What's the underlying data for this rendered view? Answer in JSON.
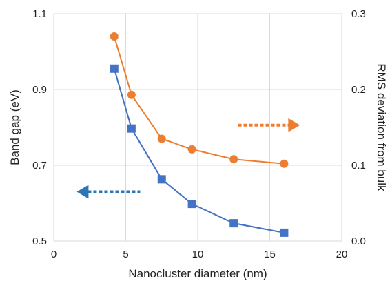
{
  "chart_data": {
    "type": "line",
    "xlabel": "Nanocluster diameter (nm)",
    "ylabel": "Band gap (eV)",
    "y2label": "RMS deviation from bulk",
    "xlim": [
      0,
      20
    ],
    "ylim": [
      0.5,
      1.1
    ],
    "y2lim": [
      0.0,
      0.3
    ],
    "xticks": [
      "0",
      "5",
      "10",
      "15",
      "20"
    ],
    "yticks": [
      "0.5",
      "0.7",
      "0.9",
      "1.1"
    ],
    "y2ticks": [
      "0.0",
      "0.1",
      "0.2",
      "0.3"
    ],
    "grid": true,
    "series": [
      {
        "axis": "left",
        "marker": "square",
        "color": "#4472C4",
        "x": [
          4.2,
          5.4,
          7.5,
          9.6,
          12.5,
          16.0
        ],
        "y": [
          0.955,
          0.797,
          0.663,
          0.598,
          0.547,
          0.522
        ]
      },
      {
        "axis": "right",
        "marker": "circle",
        "color": "#ED7D31",
        "x": [
          4.2,
          5.4,
          7.5,
          9.6,
          12.5,
          16.0
        ],
        "y": [
          0.27,
          0.193,
          0.135,
          0.121,
          0.108,
          0.102
        ]
      }
    ],
    "annotations": [
      {
        "type": "dotted-arrow",
        "direction": "left",
        "color": "#2E75B6"
      },
      {
        "type": "dotted-arrow",
        "direction": "right",
        "color": "#ED7D31"
      }
    ]
  }
}
